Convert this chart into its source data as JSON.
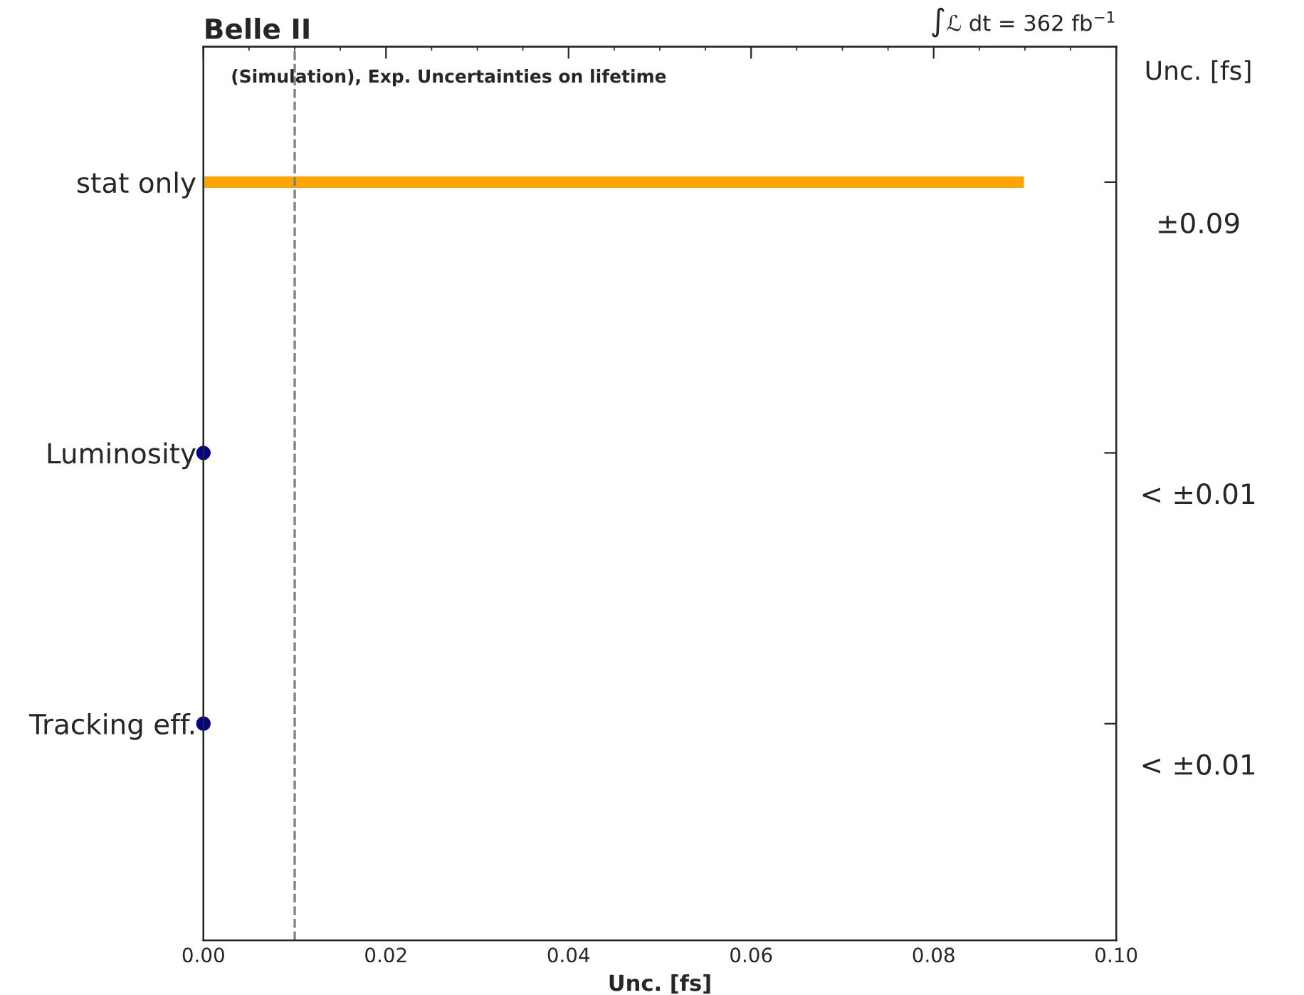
{
  "chart_data": {
    "type": "bar",
    "orientation": "horizontal",
    "title": "Belle II",
    "xlabel": "Unc. [fs]",
    "y2label": "Unc. [fs]",
    "categories": [
      "stat only",
      "Luminosity",
      "Tracking eff."
    ],
    "series": [
      {
        "color": "#ffa500",
        "values": [
          0.09,
          null,
          null
        ]
      },
      {
        "type": "scatter",
        "color": "#00008b",
        "values": [
          null,
          0,
          0
        ]
      }
    ],
    "value_labels": [
      "±0.09",
      "< ±0.01",
      "< ±0.01"
    ],
    "xlim": [
      0,
      0.1
    ],
    "xticks": [
      {
        "value": 0,
        "label": "0.00"
      },
      0.02,
      0.04,
      0.06,
      0.08,
      {
        "value": 0.1,
        "label": "0.10"
      }
    ],
    "ref_lines": [
      {
        "axis": "x",
        "value": 0.01,
        "color": "#808080",
        "line_style": "dashed"
      }
    ],
    "annotations": [
      "(Simulation), Exp. Uncertainties on lifetime",
      "∫ℒ dt = 362 fb$^{−1}$"
    ],
    "marker": "circle",
    "grid": false,
    "legend": false
  }
}
